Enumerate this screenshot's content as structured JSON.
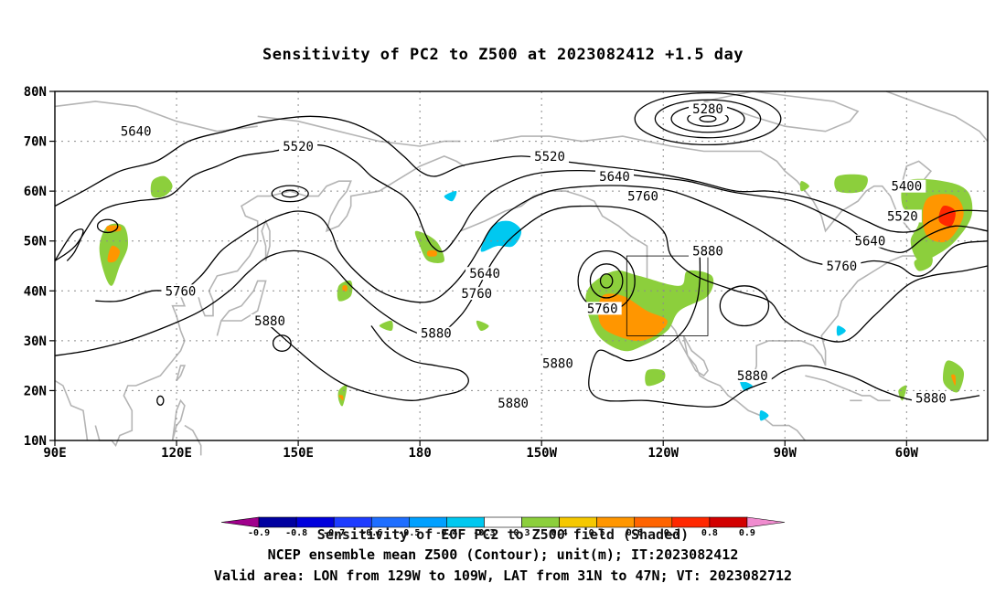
{
  "title": "Sensitivity of PC2 to Z500 at 2023082412 +1.5 day",
  "map": {
    "lat_labels": [
      "80N",
      "70N",
      "60N",
      "50N",
      "40N",
      "30N",
      "20N",
      "10N"
    ],
    "lon_labels": [
      "90E",
      "120E",
      "150E",
      "180",
      "150W",
      "120W",
      "90W",
      "60W"
    ],
    "lat_range": [
      10,
      80
    ],
    "lon_range_deg_east": [
      90,
      320
    ],
    "grid_lines": "dotted",
    "valid_box": {
      "lon_from": "129W",
      "lon_to": "109W",
      "lat_from": "31N",
      "lat_to": "47N"
    },
    "contour_labels": [
      {
        "text": "5280",
        "lon": 251,
        "lat": 76.5
      },
      {
        "text": "5400",
        "lon": 300,
        "lat": 61
      },
      {
        "text": "5520",
        "lon": 150,
        "lat": 69
      },
      {
        "text": "5520",
        "lon": 212,
        "lat": 67
      },
      {
        "text": "5520",
        "lon": 299,
        "lat": 55
      },
      {
        "text": "5640",
        "lon": 110,
        "lat": 72
      },
      {
        "text": "5640",
        "lon": 196,
        "lat": 43.5
      },
      {
        "text": "5640",
        "lon": 228,
        "lat": 63
      },
      {
        "text": "5640",
        "lon": 291,
        "lat": 50
      },
      {
        "text": "5760",
        "lon": 121,
        "lat": 40
      },
      {
        "text": "5760",
        "lon": 194,
        "lat": 39.5
      },
      {
        "text": "5760",
        "lon": 225,
        "lat": 36.5
      },
      {
        "text": "5760",
        "lon": 235,
        "lat": 59
      },
      {
        "text": "5760",
        "lon": 284,
        "lat": 45
      },
      {
        "text": "5880",
        "lon": 251,
        "lat": 48
      },
      {
        "text": "5880",
        "lon": 143,
        "lat": 34
      },
      {
        "text": "5880",
        "lon": 184,
        "lat": 31.5
      },
      {
        "text": "5880",
        "lon": 214,
        "lat": 25.5
      },
      {
        "text": "5880",
        "lon": 203,
        "lat": 17.5
      },
      {
        "text": "5880",
        "lon": 262,
        "lat": 23
      },
      {
        "text": "5880",
        "lon": 306,
        "lat": 18.5
      }
    ]
  },
  "colorbar": {
    "ticks": [
      "-0.9",
      "-0.8",
      "-0.7",
      "-0.6",
      "-0.5",
      "-0.4",
      "-0.3",
      "0.3",
      "0.4",
      "0.5",
      "0.6",
      "0.7",
      "0.8",
      "0.9"
    ],
    "colors": [
      "#a0008c",
      "#0000a0",
      "#0000dc",
      "#1e3cff",
      "#1e6eff",
      "#00a0ff",
      "#00c8f0",
      "#ffffff",
      "#8ccf3c",
      "#f5c800",
      "#ff9600",
      "#ff6400",
      "#ff2800",
      "#d20000",
      "#f08ccf"
    ]
  },
  "captions": {
    "line1": "Sensitivity of EOF PC2 to Z500 field (Shaded)",
    "line2": "NCEP ensemble mean Z500 (Contour); unit(m); IT:2023082412",
    "line3": "Valid area: LON from 129W to 109W, LAT from 31N to 47N; VT: 2023082712"
  }
}
